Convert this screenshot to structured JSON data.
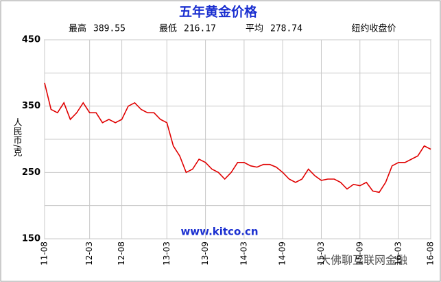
{
  "chart_data": {
    "type": "line",
    "title": "五年黄金价格",
    "stats": [
      {
        "label": "最高",
        "value": 389.55
      },
      {
        "label": "最低",
        "value": 216.17
      },
      {
        "label": "平均",
        "value": 278.74
      }
    ],
    "subtitle": "纽约收盘价",
    "y_label": "人民币/克",
    "annotation": "www.kitco.cn",
    "watermark": "大佛聊互联网金融",
    "x": [
      "11-08",
      "11-09",
      "11-10",
      "11-11",
      "11-12",
      "12-01",
      "12-02",
      "12-03",
      "12-04",
      "12-05",
      "12-06",
      "12-07",
      "12-08",
      "12-09",
      "12-10",
      "12-11",
      "12-12",
      "13-01",
      "13-02",
      "13-03",
      "13-04",
      "13-05",
      "13-06",
      "13-07",
      "13-08",
      "13-09",
      "13-10",
      "13-11",
      "13-12",
      "14-01",
      "14-02",
      "14-03",
      "14-04",
      "14-05",
      "14-06",
      "14-07",
      "14-08",
      "14-09",
      "14-10",
      "14-11",
      "14-12",
      "15-01",
      "15-02",
      "15-03",
      "15-04",
      "15-05",
      "15-06",
      "15-07",
      "15-08",
      "15-09",
      "15-10",
      "15-11",
      "15-12",
      "16-01",
      "16-02",
      "16-03",
      "16-04",
      "16-05",
      "16-06",
      "16-07",
      "16-08"
    ],
    "series": [
      {
        "name": "纽约收盘价",
        "color": "#e00000",
        "values": [
          385,
          345,
          340,
          355,
          330,
          340,
          355,
          340,
          340,
          325,
          330,
          325,
          330,
          350,
          355,
          345,
          340,
          340,
          330,
          325,
          290,
          275,
          250,
          255,
          270,
          265,
          255,
          250,
          240,
          250,
          265,
          265,
          260,
          258,
          262,
          262,
          258,
          250,
          240,
          235,
          240,
          255,
          245,
          238,
          240,
          240,
          235,
          225,
          232,
          230,
          235,
          222,
          220,
          235,
          260,
          265,
          265,
          270,
          275,
          290,
          285
        ]
      }
    ],
    "xticks": [
      "11-08",
      "12-03",
      "12-08",
      "13-03",
      "13-09",
      "14-03",
      "14-09",
      "15-03",
      "15-09",
      "16-03",
      "16-08"
    ],
    "ylim": [
      150,
      450
    ],
    "yticks": [
      150,
      250,
      350,
      450
    ],
    "grid": true
  }
}
